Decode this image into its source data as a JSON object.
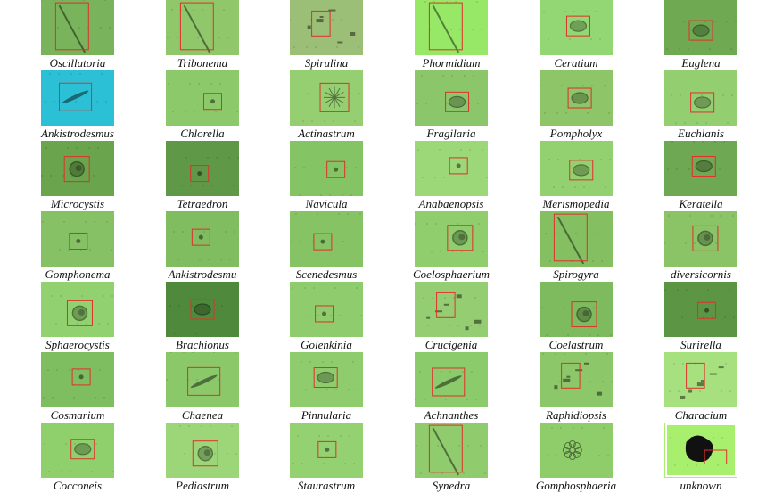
{
  "panels": [
    {
      "label": "Oscillatoria",
      "bg": "#79b35b",
      "box": "#e0302a",
      "feature": "filament"
    },
    {
      "label": "Tribonema",
      "bg": "#8fc76a",
      "box": "#e0302a",
      "feature": "filament"
    },
    {
      "label": "Spirulina",
      "bg": "#9cbf78",
      "box": "#e0302a",
      "feature": "debris"
    },
    {
      "label": "Phormidium",
      "bg": "#97e866",
      "box": "#e0302a",
      "feature": "filament"
    },
    {
      "label": "Ceratium",
      "bg": "#93d774",
      "box": "#e0302a",
      "feature": "cell"
    },
    {
      "label": "Euglena",
      "bg": "#6faa52",
      "box": "#e0302a",
      "feature": "cell"
    },
    {
      "label": "Ankistrodesmus",
      "bg": "#2cc0d6",
      "box": "#e0302a",
      "feature": "needle"
    },
    {
      "label": "Chlorella",
      "bg": "#8cc96a",
      "box": "#e0302a",
      "feature": "dot"
    },
    {
      "label": "Actinastrum",
      "bg": "#96cf72",
      "box": "#e0302a",
      "feature": "star"
    },
    {
      "label": "Fragilaria",
      "bg": "#8bc66b",
      "box": "#e0302a",
      "feature": "cell"
    },
    {
      "label": "Pompholyx",
      "bg": "#8dc568",
      "box": "#e0302a",
      "feature": "cell"
    },
    {
      "label": "Euchlanis",
      "bg": "#93cf70",
      "box": "#e0302a",
      "feature": "cell"
    },
    {
      "label": "Microcystis",
      "bg": "#6aa54d",
      "box": "#e0302a",
      "feature": "colony"
    },
    {
      "label": "Tetraedron",
      "bg": "#5f9846",
      "box": "#e0302a",
      "feature": "dot"
    },
    {
      "label": "Navicula",
      "bg": "#84c464",
      "box": "#e0302a",
      "feature": "dot"
    },
    {
      "label": "Anabaenopsis",
      "bg": "#9cd877",
      "box": "#e0302a",
      "feature": "dot"
    },
    {
      "label": "Merismopedia",
      "bg": "#93d06f",
      "box": "#e0302a",
      "feature": "cell"
    },
    {
      "label": "Keratella",
      "bg": "#6fa852",
      "box": "#e0302a",
      "feature": "cell"
    },
    {
      "label": "Gomphonema",
      "bg": "#86c165",
      "box": "#e0302a",
      "feature": "dot"
    },
    {
      "label": "Ankistrodesmu",
      "bg": "#7fbd60",
      "box": "#e0302a",
      "feature": "dot"
    },
    {
      "label": "Scenedesmus",
      "bg": "#86c365",
      "box": "#e0302a",
      "feature": "dot"
    },
    {
      "label": "Coelosphaerium",
      "bg": "#8fcd6d",
      "box": "#e0302a",
      "feature": "colony"
    },
    {
      "label": "Spirogyra",
      "bg": "#84bf62",
      "box": "#e0302a",
      "feature": "filament"
    },
    {
      "label": "diversicornis",
      "bg": "#8ac467",
      "box": "#e0302a",
      "feature": "colony"
    },
    {
      "label": "Sphaerocystis",
      "bg": "#91d16f",
      "box": "#e0302a",
      "feature": "colony"
    },
    {
      "label": "Brachionus",
      "bg": "#4f8a3c",
      "box": "#e0302a",
      "feature": "cell"
    },
    {
      "label": "Golenkinia",
      "bg": "#8fcc6d",
      "box": "#e0302a",
      "feature": "dot"
    },
    {
      "label": "Crucigenia",
      "bg": "#95cd72",
      "box": "#e0302a",
      "feature": "debris"
    },
    {
      "label": "Coelastrum",
      "bg": "#7ebb5f",
      "box": "#e0302a",
      "feature": "colony"
    },
    {
      "label": "Surirella",
      "bg": "#5c9644",
      "box": "#e0302a",
      "feature": "dot"
    },
    {
      "label": "Cosmarium",
      "bg": "#7fbd61",
      "box": "#e0302a",
      "feature": "dot"
    },
    {
      "label": "Chaenea",
      "bg": "#8bc86a",
      "box": "#e0302a",
      "feature": "needle"
    },
    {
      "label": "Pinnularia",
      "bg": "#8fcc6d",
      "box": "#e0302a",
      "feature": "cell"
    },
    {
      "label": "Achnanthes",
      "bg": "#8ccb6b",
      "box": "#e0302a",
      "feature": "needle"
    },
    {
      "label": "Raphidiopsis",
      "bg": "#8cc769",
      "box": "#e0302a",
      "feature": "debris"
    },
    {
      "label": "Characium",
      "bg": "#a6e07f",
      "box": "#e0302a",
      "feature": "debris"
    },
    {
      "label": "Cocconeis",
      "bg": "#8fd06d",
      "box": "#e0302a",
      "feature": "cell"
    },
    {
      "label": "Pediastrum",
      "bg": "#9cd679",
      "box": "#e0302a",
      "feature": "colony"
    },
    {
      "label": "Staurastrum",
      "bg": "#93d171",
      "box": "#e0302a",
      "feature": "dot"
    },
    {
      "label": "Synedra",
      "bg": "#90cc6e",
      "box": "#e0302a",
      "feature": "filament"
    },
    {
      "label": "Gomphosphaeria",
      "bg": "#8fcd6b",
      "box": "#e0302a",
      "feature": "flower"
    },
    {
      "label": "unknown",
      "bg": "#a8ef6e",
      "box": "#e0302a",
      "feature": "blob"
    }
  ]
}
